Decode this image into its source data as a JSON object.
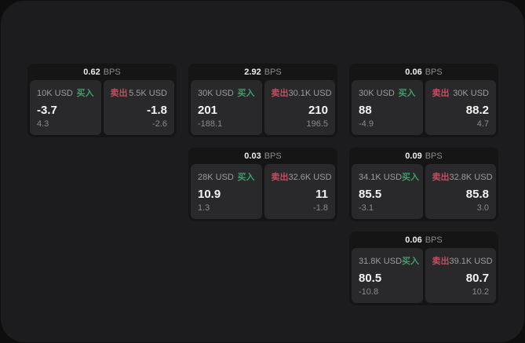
{
  "labels": {
    "bps_unit": "BPS",
    "buy": "买入",
    "sell": "卖出"
  },
  "colors": {
    "buy_green": "#3d9e68",
    "sell_red": "#c44d61",
    "window_bg": "#1c1c1e",
    "card_bg": "#151516",
    "panel_bg": "#29292b"
  },
  "cards": [
    {
      "grid": {
        "row": 1,
        "col": 1
      },
      "bps": "0.62",
      "buy": {
        "amount": "10K USD",
        "value": "-3.7",
        "delta": "4.3"
      },
      "sell": {
        "amount": "5.5K USD",
        "value": "-1.8",
        "delta": "-2.6"
      }
    },
    {
      "grid": {
        "row": 1,
        "col": 2
      },
      "bps": "2.92",
      "buy": {
        "amount": "30K USD",
        "value": "201",
        "delta": "-188.1"
      },
      "sell": {
        "amount": "30.1K USD",
        "value": "210",
        "delta": "196.5"
      }
    },
    {
      "grid": {
        "row": 1,
        "col": 3
      },
      "bps": "0.06",
      "buy": {
        "amount": "30K USD",
        "value": "88",
        "delta": "-4.9"
      },
      "sell": {
        "amount": "30K USD",
        "value": "88.2",
        "delta": "4.7"
      }
    },
    {
      "grid": {
        "row": 2,
        "col": 2
      },
      "bps": "0.03",
      "buy": {
        "amount": "28K USD",
        "value": "10.9",
        "delta": "1.3"
      },
      "sell": {
        "amount": "32.6K USD",
        "value": "11",
        "delta": "-1.8"
      }
    },
    {
      "grid": {
        "row": 2,
        "col": 3
      },
      "bps": "0.09",
      "buy": {
        "amount": "34.1K USD",
        "value": "85.5",
        "delta": "-3.1"
      },
      "sell": {
        "amount": "32.8K USD",
        "value": "85.8",
        "delta": "3.0"
      }
    },
    {
      "grid": {
        "row": 3,
        "col": 3
      },
      "bps": "0.06",
      "buy": {
        "amount": "31.8K USD",
        "value": "80.5",
        "delta": "-10.8"
      },
      "sell": {
        "amount": "39.1K USD",
        "value": "80.7",
        "delta": "10.2"
      }
    }
  ]
}
